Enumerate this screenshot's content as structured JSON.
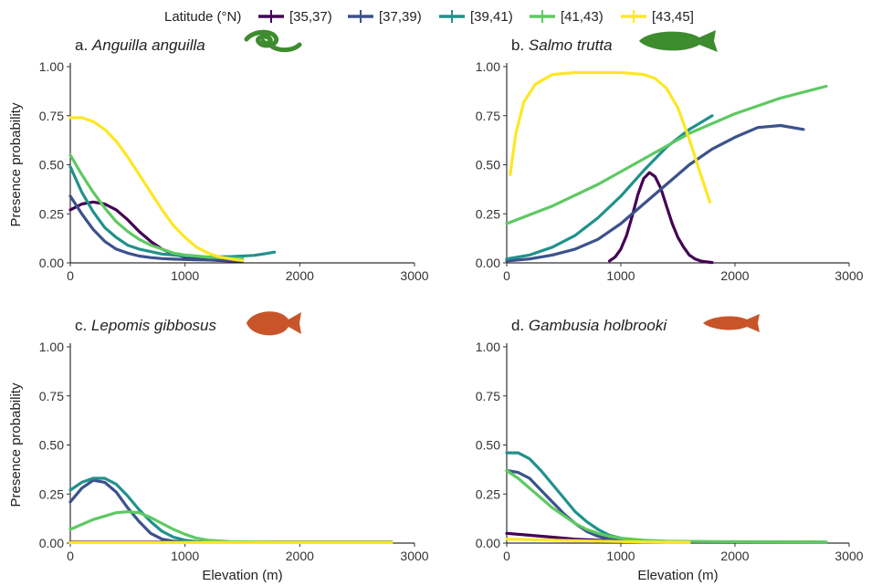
{
  "legend": {
    "title": "Latitude (°N)",
    "entries": [
      {
        "label": "[35,37)",
        "color": "#440154"
      },
      {
        "label": "[37,39)",
        "color": "#3b528b"
      },
      {
        "label": "[39,41)",
        "color": "#21918c"
      },
      {
        "label": "[41,43)",
        "color": "#5ec962"
      },
      {
        "label": "[43,45]",
        "color": "#fde725"
      }
    ]
  },
  "axes": {
    "xlabel": "Elevation (m)",
    "ylabel": "Presence probability",
    "xlim": [
      0,
      3000
    ],
    "ylim": [
      0,
      1
    ],
    "xticks": [
      "0",
      "1000",
      "2000",
      "3000"
    ],
    "yticks": [
      "0.00",
      "0.25",
      "0.50",
      "0.75",
      "1.00"
    ]
  },
  "chart_data": [
    {
      "type": "line",
      "panel_letter": "a.",
      "species": "Anguilla anguilla",
      "silhouette": "eel-icon",
      "silhouette_color": "#3d8c2e",
      "series": [
        {
          "name": "[35,37)",
          "color": "#440154",
          "x": [
            0,
            100,
            200,
            300,
            400,
            500,
            600,
            700,
            800,
            900,
            1000,
            1100,
            1200,
            1300,
            1400,
            1500
          ],
          "y": [
            0.27,
            0.3,
            0.31,
            0.3,
            0.27,
            0.22,
            0.16,
            0.11,
            0.07,
            0.045,
            0.03,
            0.02,
            0.015,
            0.012,
            0.01,
            0.01
          ]
        },
        {
          "name": "[37,39)",
          "color": "#3b528b",
          "x": [
            0,
            100,
            200,
            300,
            400,
            500,
            600,
            700,
            800,
            900,
            1000,
            1100,
            1200,
            1300,
            1400,
            1500
          ],
          "y": [
            0.34,
            0.25,
            0.17,
            0.11,
            0.07,
            0.05,
            0.035,
            0.027,
            0.022,
            0.019,
            0.017,
            0.016,
            0.015,
            0.014,
            0.013,
            0.012
          ]
        },
        {
          "name": "[39,41)",
          "color": "#21918c",
          "x": [
            0,
            100,
            200,
            300,
            400,
            500,
            600,
            800,
            1000,
            1200,
            1400,
            1600,
            1700,
            1780
          ],
          "y": [
            0.49,
            0.36,
            0.26,
            0.18,
            0.13,
            0.09,
            0.07,
            0.045,
            0.035,
            0.03,
            0.032,
            0.038,
            0.047,
            0.055
          ]
        },
        {
          "name": "[41,43)",
          "color": "#5ec962",
          "x": [
            0,
            100,
            200,
            300,
            400,
            500,
            600,
            700,
            800,
            900,
            1000,
            1100,
            1200,
            1300,
            1400,
            1500
          ],
          "y": [
            0.55,
            0.45,
            0.36,
            0.28,
            0.21,
            0.16,
            0.12,
            0.09,
            0.07,
            0.05,
            0.04,
            0.035,
            0.03,
            0.027,
            0.024,
            0.022
          ]
        },
        {
          "name": "[43,45]",
          "color": "#fde725",
          "x": [
            0,
            100,
            200,
            300,
            400,
            500,
            600,
            700,
            800,
            900,
            1000,
            1100,
            1200,
            1300,
            1400,
            1500
          ],
          "y": [
            0.74,
            0.74,
            0.72,
            0.68,
            0.62,
            0.54,
            0.45,
            0.36,
            0.27,
            0.19,
            0.13,
            0.08,
            0.05,
            0.03,
            0.02,
            0.012
          ]
        }
      ]
    },
    {
      "type": "line",
      "panel_letter": "b.",
      "species": "Salmo trutta",
      "silhouette": "trout-icon",
      "silhouette_color": "#3d8c2e",
      "series": [
        {
          "name": "[35,37)",
          "color": "#440154",
          "x": [
            900,
            950,
            1000,
            1050,
            1100,
            1150,
            1200,
            1250,
            1300,
            1350,
            1400,
            1450,
            1500,
            1550,
            1600,
            1650,
            1700,
            1750,
            1800
          ],
          "y": [
            0.01,
            0.03,
            0.07,
            0.14,
            0.24,
            0.35,
            0.43,
            0.46,
            0.44,
            0.38,
            0.29,
            0.2,
            0.13,
            0.08,
            0.04,
            0.02,
            0.01,
            0.005,
            0.002
          ]
        },
        {
          "name": "[37,39)",
          "color": "#3b528b",
          "x": [
            0,
            200,
            400,
            600,
            800,
            1000,
            1200,
            1400,
            1600,
            1800,
            2000,
            2200,
            2400,
            2600
          ],
          "y": [
            0.01,
            0.02,
            0.04,
            0.07,
            0.12,
            0.2,
            0.3,
            0.4,
            0.5,
            0.58,
            0.64,
            0.69,
            0.7,
            0.68
          ]
        },
        {
          "name": "[39,41)",
          "color": "#21918c",
          "x": [
            0,
            200,
            400,
            600,
            800,
            1000,
            1200,
            1400,
            1600,
            1800
          ],
          "y": [
            0.02,
            0.04,
            0.08,
            0.14,
            0.23,
            0.34,
            0.47,
            0.59,
            0.68,
            0.75
          ]
        },
        {
          "name": "[41,43)",
          "color": "#5ec962",
          "x": [
            0,
            400,
            800,
            1200,
            1600,
            2000,
            2400,
            2800
          ],
          "y": [
            0.2,
            0.29,
            0.4,
            0.53,
            0.66,
            0.76,
            0.84,
            0.9
          ]
        },
        {
          "name": "[43,45]",
          "color": "#fde725",
          "x": [
            30,
            80,
            150,
            250,
            400,
            600,
            800,
            1000,
            1200,
            1300,
            1400,
            1500,
            1600,
            1700,
            1780
          ],
          "y": [
            0.45,
            0.66,
            0.82,
            0.91,
            0.96,
            0.97,
            0.97,
            0.97,
            0.96,
            0.94,
            0.89,
            0.79,
            0.63,
            0.45,
            0.31
          ]
        }
      ]
    },
    {
      "type": "line",
      "panel_letter": "c.",
      "species": "Lepomis gibbosus",
      "silhouette": "sunfish-icon",
      "silhouette_color": "#c8552a",
      "series": [
        {
          "name": "[35,37)",
          "color": "#440154",
          "x": [
            0,
            200,
            400,
            600,
            800,
            1000,
            1200,
            1400,
            1600,
            1800,
            2000,
            2200,
            2400,
            2600,
            2800
          ],
          "y": [
            0.005,
            0.005,
            0.005,
            0.005,
            0.005,
            0.005,
            0.005,
            0.005,
            0.005,
            0.005,
            0.005,
            0.005,
            0.005,
            0.005,
            0.005
          ]
        },
        {
          "name": "[37,39)",
          "color": "#3b528b",
          "x": [
            0,
            100,
            200,
            300,
            400,
            500,
            600,
            700,
            800,
            900,
            1000
          ],
          "y": [
            0.21,
            0.28,
            0.32,
            0.31,
            0.26,
            0.18,
            0.11,
            0.05,
            0.02,
            0.01,
            0.005
          ]
        },
        {
          "name": "[39,41)",
          "color": "#21918c",
          "x": [
            0,
            100,
            200,
            300,
            400,
            500,
            600,
            700,
            800,
            900,
            1000,
            1100,
            1200,
            1400
          ],
          "y": [
            0.27,
            0.31,
            0.33,
            0.33,
            0.3,
            0.24,
            0.17,
            0.11,
            0.06,
            0.03,
            0.015,
            0.008,
            0.005,
            0.003
          ]
        },
        {
          "name": "[41,43)",
          "color": "#5ec962",
          "x": [
            0,
            200,
            400,
            500,
            600,
            700,
            800,
            900,
            1000,
            1100,
            1200,
            1400,
            1800,
            2200,
            2800
          ],
          "y": [
            0.07,
            0.12,
            0.155,
            0.16,
            0.155,
            0.13,
            0.1,
            0.07,
            0.045,
            0.025,
            0.015,
            0.008,
            0.005,
            0.005,
            0.005
          ]
        },
        {
          "name": "[43,45]",
          "color": "#fde725",
          "x": [
            0,
            200,
            400,
            600,
            800,
            1000,
            1200,
            1400,
            1600,
            1800,
            2000,
            2200,
            2400,
            2600,
            2800
          ],
          "y": [
            0.003,
            0.003,
            0.003,
            0.003,
            0.003,
            0.003,
            0.003,
            0.003,
            0.003,
            0.003,
            0.003,
            0.003,
            0.003,
            0.003,
            0.003
          ]
        }
      ]
    },
    {
      "type": "line",
      "panel_letter": "d.",
      "species": "Gambusia holbrooki",
      "silhouette": "mosquitofish-icon",
      "silhouette_color": "#c8552a",
      "series": [
        {
          "name": "[35,37)",
          "color": "#440154",
          "x": [
            0,
            200,
            400,
            600,
            800,
            1000,
            1200,
            1400,
            1600
          ],
          "y": [
            0.05,
            0.04,
            0.03,
            0.02,
            0.015,
            0.01,
            0.008,
            0.006,
            0.005
          ]
        },
        {
          "name": "[37,39)",
          "color": "#3b528b",
          "x": [
            0,
            100,
            200,
            300,
            400,
            500,
            600,
            700,
            800,
            900,
            1000,
            1100,
            1200
          ],
          "y": [
            0.37,
            0.36,
            0.33,
            0.27,
            0.21,
            0.15,
            0.1,
            0.06,
            0.035,
            0.02,
            0.012,
            0.008,
            0.005
          ]
        },
        {
          "name": "[39,41)",
          "color": "#21918c",
          "x": [
            0,
            100,
            200,
            300,
            400,
            500,
            600,
            700,
            800,
            900,
            1000,
            1100,
            1200,
            1400,
            1600
          ],
          "y": [
            0.46,
            0.46,
            0.43,
            0.37,
            0.3,
            0.23,
            0.16,
            0.11,
            0.07,
            0.04,
            0.025,
            0.015,
            0.01,
            0.008,
            0.006
          ]
        },
        {
          "name": "[41,43)",
          "color": "#5ec962",
          "x": [
            0,
            100,
            200,
            300,
            400,
            500,
            600,
            700,
            800,
            900,
            1000,
            1200,
            1400,
            1800,
            2200,
            2800
          ],
          "y": [
            0.37,
            0.33,
            0.28,
            0.23,
            0.18,
            0.14,
            0.1,
            0.07,
            0.05,
            0.035,
            0.025,
            0.015,
            0.01,
            0.008,
            0.007,
            0.006
          ]
        },
        {
          "name": "[43,45]",
          "color": "#fde725",
          "x": [
            0,
            200,
            400,
            600,
            800,
            1000,
            1200,
            1400,
            1600
          ],
          "y": [
            0.02,
            0.018,
            0.015,
            0.012,
            0.01,
            0.008,
            0.006,
            0.005,
            0.004
          ]
        }
      ]
    }
  ]
}
